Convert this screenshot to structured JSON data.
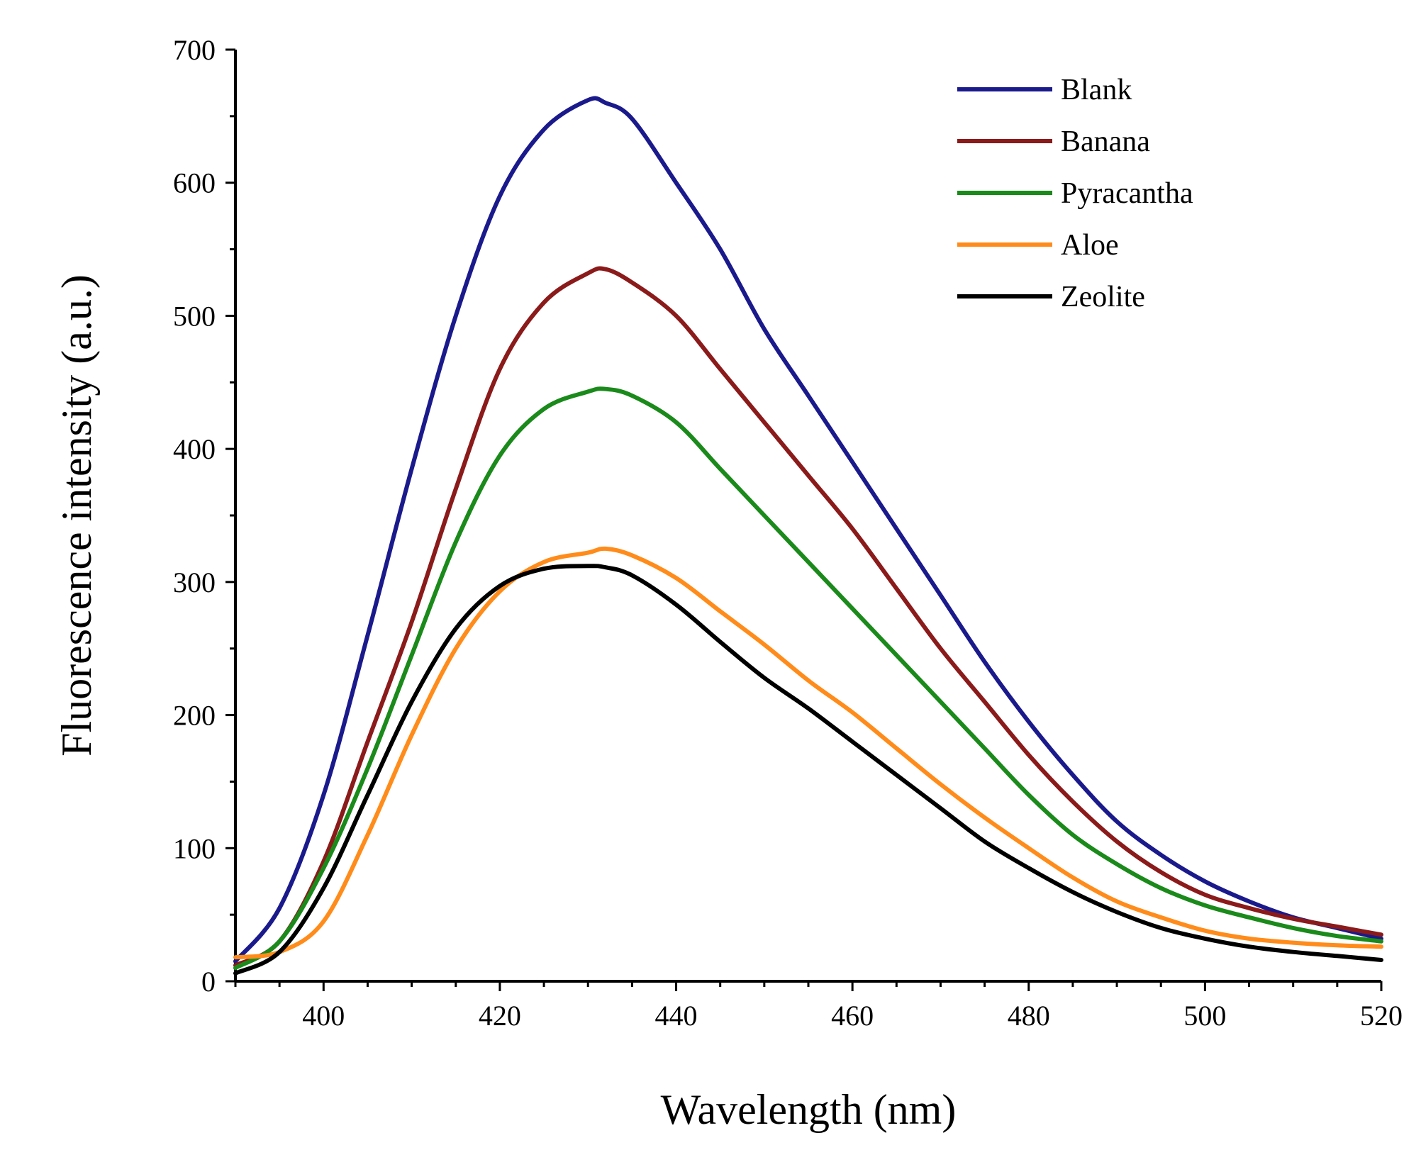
{
  "chart_data": {
    "type": "line",
    "title": "",
    "xlabel": "Wavelength (nm)",
    "ylabel": "Fluorescence intensity (a.u.)",
    "xlim": [
      390,
      520
    ],
    "ylim": [
      0,
      700
    ],
    "xticks": [
      400,
      420,
      440,
      460,
      480,
      500,
      520
    ],
    "yticks": [
      0,
      100,
      200,
      300,
      400,
      500,
      600,
      700
    ],
    "grid": false,
    "legend_position": "top-right",
    "x": [
      390,
      395,
      400,
      405,
      410,
      415,
      420,
      425,
      430,
      432,
      435,
      440,
      445,
      450,
      455,
      460,
      465,
      470,
      475,
      480,
      485,
      490,
      495,
      500,
      505,
      510,
      515,
      520
    ],
    "series": [
      {
        "name": "Blank",
        "color": "#1a1a8c",
        "values": [
          15,
          55,
          140,
          260,
          385,
          500,
          590,
          640,
          662,
          660,
          648,
          600,
          550,
          490,
          440,
          390,
          340,
          290,
          240,
          195,
          155,
          120,
          95,
          75,
          60,
          48,
          40,
          32
        ]
      },
      {
        "name": "Banana",
        "color": "#8b1a1a",
        "values": [
          12,
          30,
          90,
          180,
          270,
          370,
          460,
          510,
          532,
          535,
          525,
          500,
          460,
          420,
          380,
          340,
          295,
          250,
          210,
          170,
          135,
          105,
          82,
          65,
          55,
          47,
          41,
          35
        ]
      },
      {
        "name": "Pyracantha",
        "color": "#1a8a1a",
        "values": [
          10,
          30,
          85,
          160,
          245,
          330,
          395,
          430,
          443,
          445,
          440,
          420,
          385,
          350,
          315,
          280,
          245,
          210,
          175,
          140,
          110,
          88,
          70,
          57,
          48,
          40,
          34,
          30
        ]
      },
      {
        "name": "Aloe",
        "color": "#ff8c1a",
        "values": [
          18,
          22,
          45,
          110,
          185,
          250,
          293,
          315,
          322,
          325,
          320,
          303,
          278,
          253,
          226,
          202,
          175,
          148,
          123,
          100,
          78,
          60,
          48,
          38,
          32,
          29,
          27,
          26
        ]
      },
      {
        "name": "Zeolite",
        "color": "#000000",
        "values": [
          6,
          22,
          70,
          140,
          210,
          265,
          297,
          310,
          312,
          311,
          305,
          283,
          255,
          228,
          205,
          180,
          155,
          130,
          105,
          85,
          67,
          52,
          40,
          32,
          26,
          22,
          19,
          16
        ]
      }
    ]
  }
}
